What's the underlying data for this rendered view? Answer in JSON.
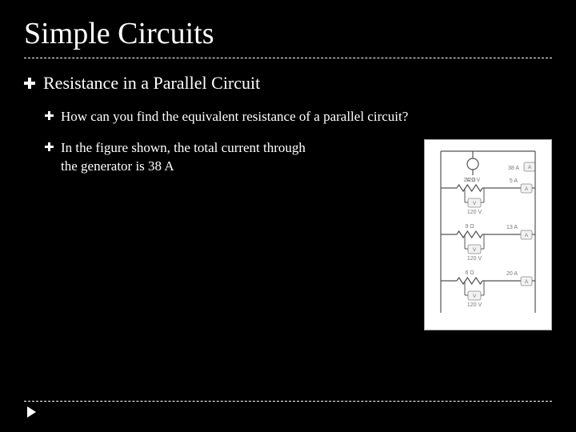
{
  "title": "Simple Circuits",
  "lvl1": "Resistance in a Parallel Circuit",
  "lvl2a": "How can you find the equivalent resistance of a parallel circuit?",
  "lvl2b_line1": "In the figure shown, the total current through",
  "lvl2b_line2": "the generator is 38 A",
  "circuit": {
    "source_label": "120 V",
    "total_current": "38 A",
    "branches": [
      {
        "r_label": "24 Ω",
        "i_label": "5 A",
        "v_label": "120 V"
      },
      {
        "r_label": "9 Ω",
        "i_label": "13 A",
        "v_label": "120 V"
      },
      {
        "r_label": "6 Ω",
        "i_label": "20 A",
        "v_label": "120 V"
      }
    ],
    "colors": {
      "wire": "#555555",
      "text": "#777777",
      "meter_fill": "#f2f2f2",
      "meter_stroke": "#888888",
      "resistor_stroke": "#555555",
      "bg": "#ffffff"
    }
  }
}
